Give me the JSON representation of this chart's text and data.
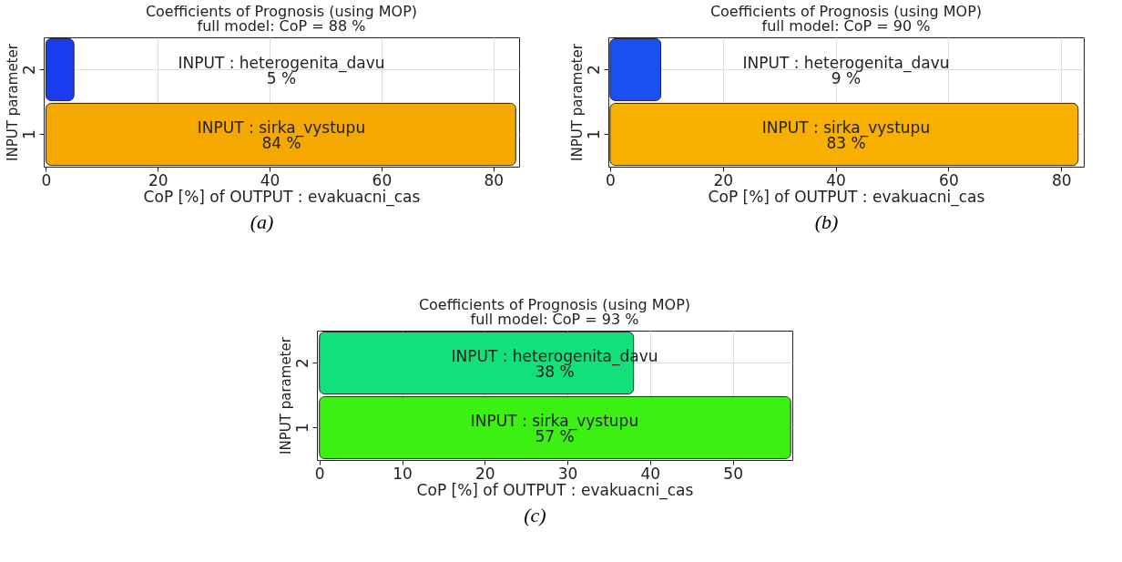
{
  "chart_data": [
    {
      "type": "bar",
      "orientation": "horizontal",
      "title": "Coefficients of Prognosis (using MOP)",
      "subtitle": "full model: CoP = 88 %",
      "xlabel": "CoP [%] of OUTPUT : evakuacni_cas",
      "ylabel": "INPUT parameter",
      "categories": [
        "2",
        "1"
      ],
      "values": [
        5,
        84
      ],
      "colors": [
        "#1a3cf0",
        "#f5a800"
      ],
      "value_labels": [
        "5 %",
        "84 %"
      ],
      "xlim": [
        -0.4,
        84.6
      ],
      "xticks": [
        0,
        20,
        40,
        60,
        80
      ],
      "grid": true,
      "annotations": [
        "INPUT : heterogenita_davu",
        "INPUT : sirka_vystupu",
        "(a)"
      ]
    },
    {
      "type": "bar",
      "orientation": "horizontal",
      "title": "Coefficients of Prognosis (using MOP)",
      "subtitle": "full model: CoP = 90 %",
      "xlabel": "CoP [%] of OUTPUT : evakuacni_cas",
      "ylabel": "INPUT parameter",
      "categories": [
        "2",
        "1"
      ],
      "values": [
        9,
        83
      ],
      "colors": [
        "#1a50f0",
        "#f8b000"
      ],
      "value_labels": [
        "9 %",
        "83 %"
      ],
      "xlim": [
        -0.3,
        84
      ],
      "xticks": [
        0,
        20,
        40,
        60,
        80
      ],
      "grid": true,
      "annotations": [
        "INPUT : heterogenita_davu",
        "INPUT : sirka_vystupu",
        "(b)"
      ]
    },
    {
      "type": "bar",
      "orientation": "horizontal",
      "title": "Coefficients of Prognosis (using MOP)",
      "subtitle": "full model: CoP = 93 %",
      "xlabel": "CoP [%] of OUTPUT : evakuacni_cas",
      "ylabel": "INPUT parameter",
      "categories": [
        "2",
        "1"
      ],
      "values": [
        38,
        57
      ],
      "colors": [
        "#12e07a",
        "#3cf014"
      ],
      "value_labels": [
        "38 %",
        "57 %"
      ],
      "xlim": [
        -0.3,
        57.2
      ],
      "xticks": [
        0,
        10,
        20,
        30,
        40,
        50
      ],
      "grid": true,
      "annotations": [
        "INPUT : heterogenita_davu",
        "INPUT : sirka_vystupu",
        "(c)"
      ]
    }
  ]
}
